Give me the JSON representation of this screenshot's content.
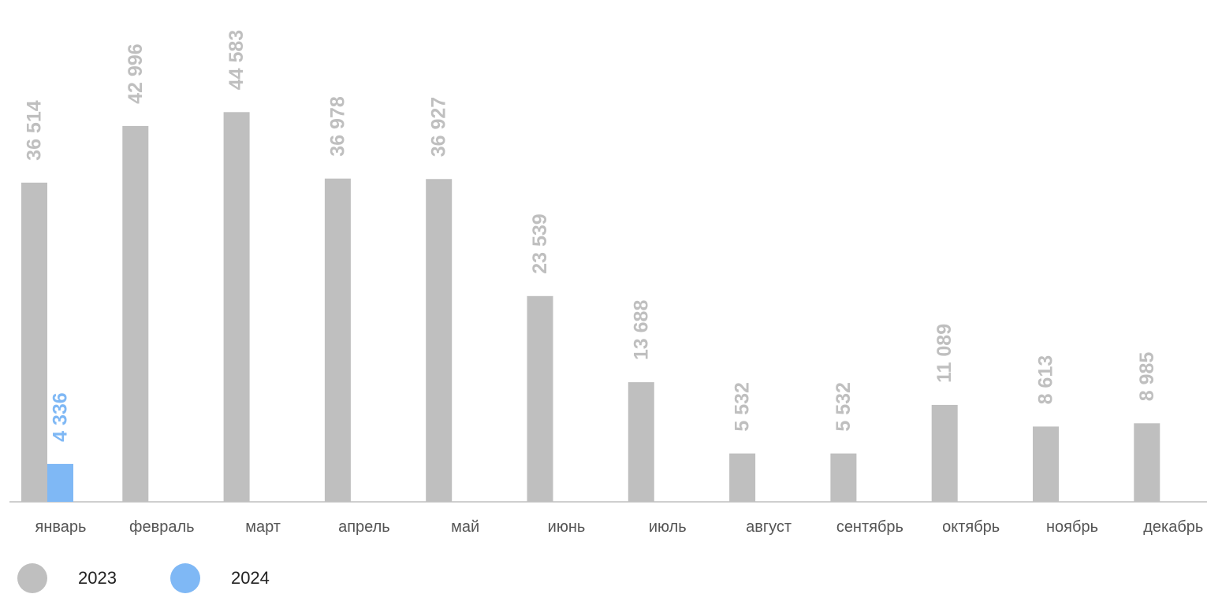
{
  "chart_data": {
    "type": "bar",
    "categories": [
      "январь",
      "февраль",
      "март",
      "апрель",
      "май",
      "июнь",
      "июль",
      "август",
      "сентябрь",
      "октябрь",
      "ноябрь",
      "декабрь"
    ],
    "series": [
      {
        "name": "2023",
        "color": "#bfbfbf",
        "label_color": "#bfbfbf",
        "values": [
          36514,
          42996,
          44583,
          36978,
          36927,
          23539,
          13688,
          5532,
          5532,
          11089,
          8613,
          8985
        ],
        "labels": [
          "36 514",
          "42 996",
          "44 583",
          "36 978",
          "36 927",
          "23 539",
          "13 688",
          "5 532",
          "5 532",
          "11 089",
          "8 613",
          "8 985"
        ]
      },
      {
        "name": "2024",
        "color": "#7fb8f5",
        "label_color": "#7fb8f5",
        "values": [
          4336,
          null,
          null,
          null,
          null,
          null,
          null,
          null,
          null,
          null,
          null,
          null
        ],
        "labels": [
          "4 336",
          "",
          "",
          "",
          "",
          "",
          "",
          "",
          "",
          "",
          "",
          ""
        ]
      }
    ],
    "ylim": [
      0,
      52000
    ],
    "grid": false,
    "legend_position": "bottom-left",
    "data_label_orientation": "vertical"
  }
}
